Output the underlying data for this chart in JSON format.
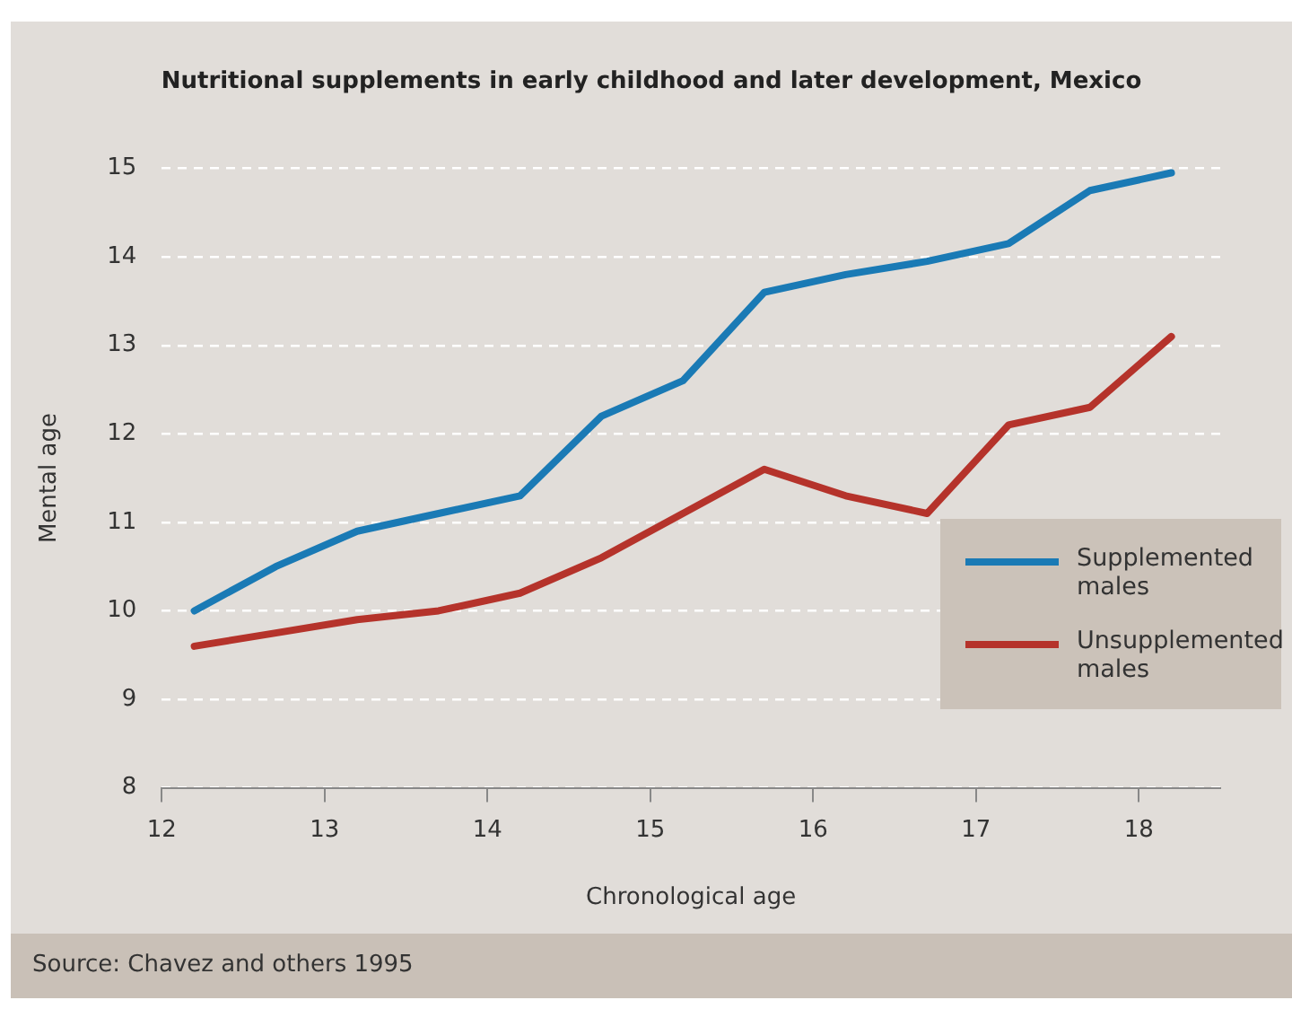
{
  "chart_data": {
    "type": "line",
    "title": "Nutritional supplements in early childhood and later development, Mexico",
    "xlabel": "Chronological age",
    "ylabel": "Mental age",
    "x": [
      12.2,
      12.7,
      13.2,
      13.7,
      14.2,
      14.7,
      15.2,
      15.7,
      16.2,
      16.7,
      17.2,
      17.7,
      18.2
    ],
    "series": [
      {
        "name": "Supplemented males",
        "color": "#1a7ab5",
        "values": [
          10.0,
          10.5,
          10.9,
          11.1,
          11.3,
          12.2,
          12.6,
          13.6,
          13.8,
          13.95,
          14.15,
          14.75,
          14.95
        ]
      },
      {
        "name": "Unsupplemented males",
        "color": "#b5332b",
        "values": [
          9.6,
          9.75,
          9.9,
          10.0,
          10.2,
          10.6,
          11.1,
          11.6,
          11.3,
          11.1,
          12.1,
          12.3,
          13.1
        ]
      }
    ],
    "xlim": [
      12,
      18.5
    ],
    "xticks": [
      12,
      13,
      14,
      15,
      16,
      17,
      18
    ],
    "ylim": [
      8,
      15
    ],
    "yticks": [
      8,
      9,
      10,
      11,
      12,
      13,
      14,
      15
    ],
    "grid": "y",
    "legend": "right",
    "marker": "none",
    "line_style": "solid",
    "annotations": [
      "Source: Chavez and others 1995"
    ]
  }
}
